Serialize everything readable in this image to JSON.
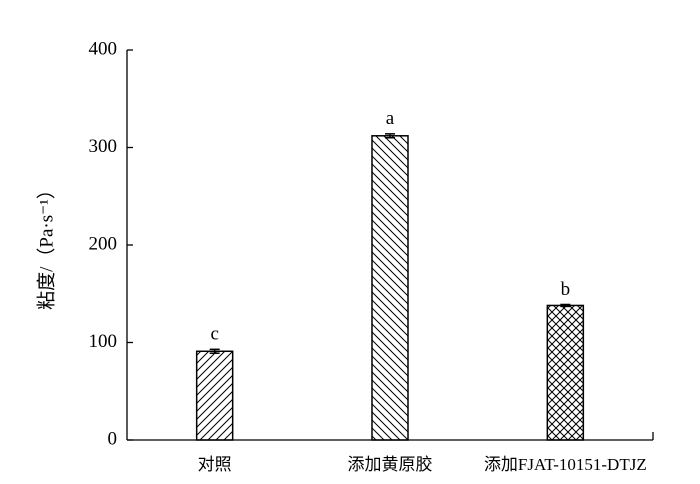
{
  "chart_data": {
    "type": "bar",
    "y_label": "粘度/（Pa·s⁻¹）",
    "categories": [
      "对照",
      "添加黄原胶",
      "添加FJAT-10151-DTJZ"
    ],
    "values": [
      91,
      312,
      138
    ],
    "errors": [
      2,
      2,
      1
    ],
    "annotations": [
      "c",
      "a",
      "b"
    ],
    "hatches": [
      "/",
      "\\",
      "x"
    ],
    "color": "#000000",
    "ylim": [
      0,
      400
    ],
    "yticks": [
      0,
      100,
      200,
      300,
      400
    ]
  }
}
